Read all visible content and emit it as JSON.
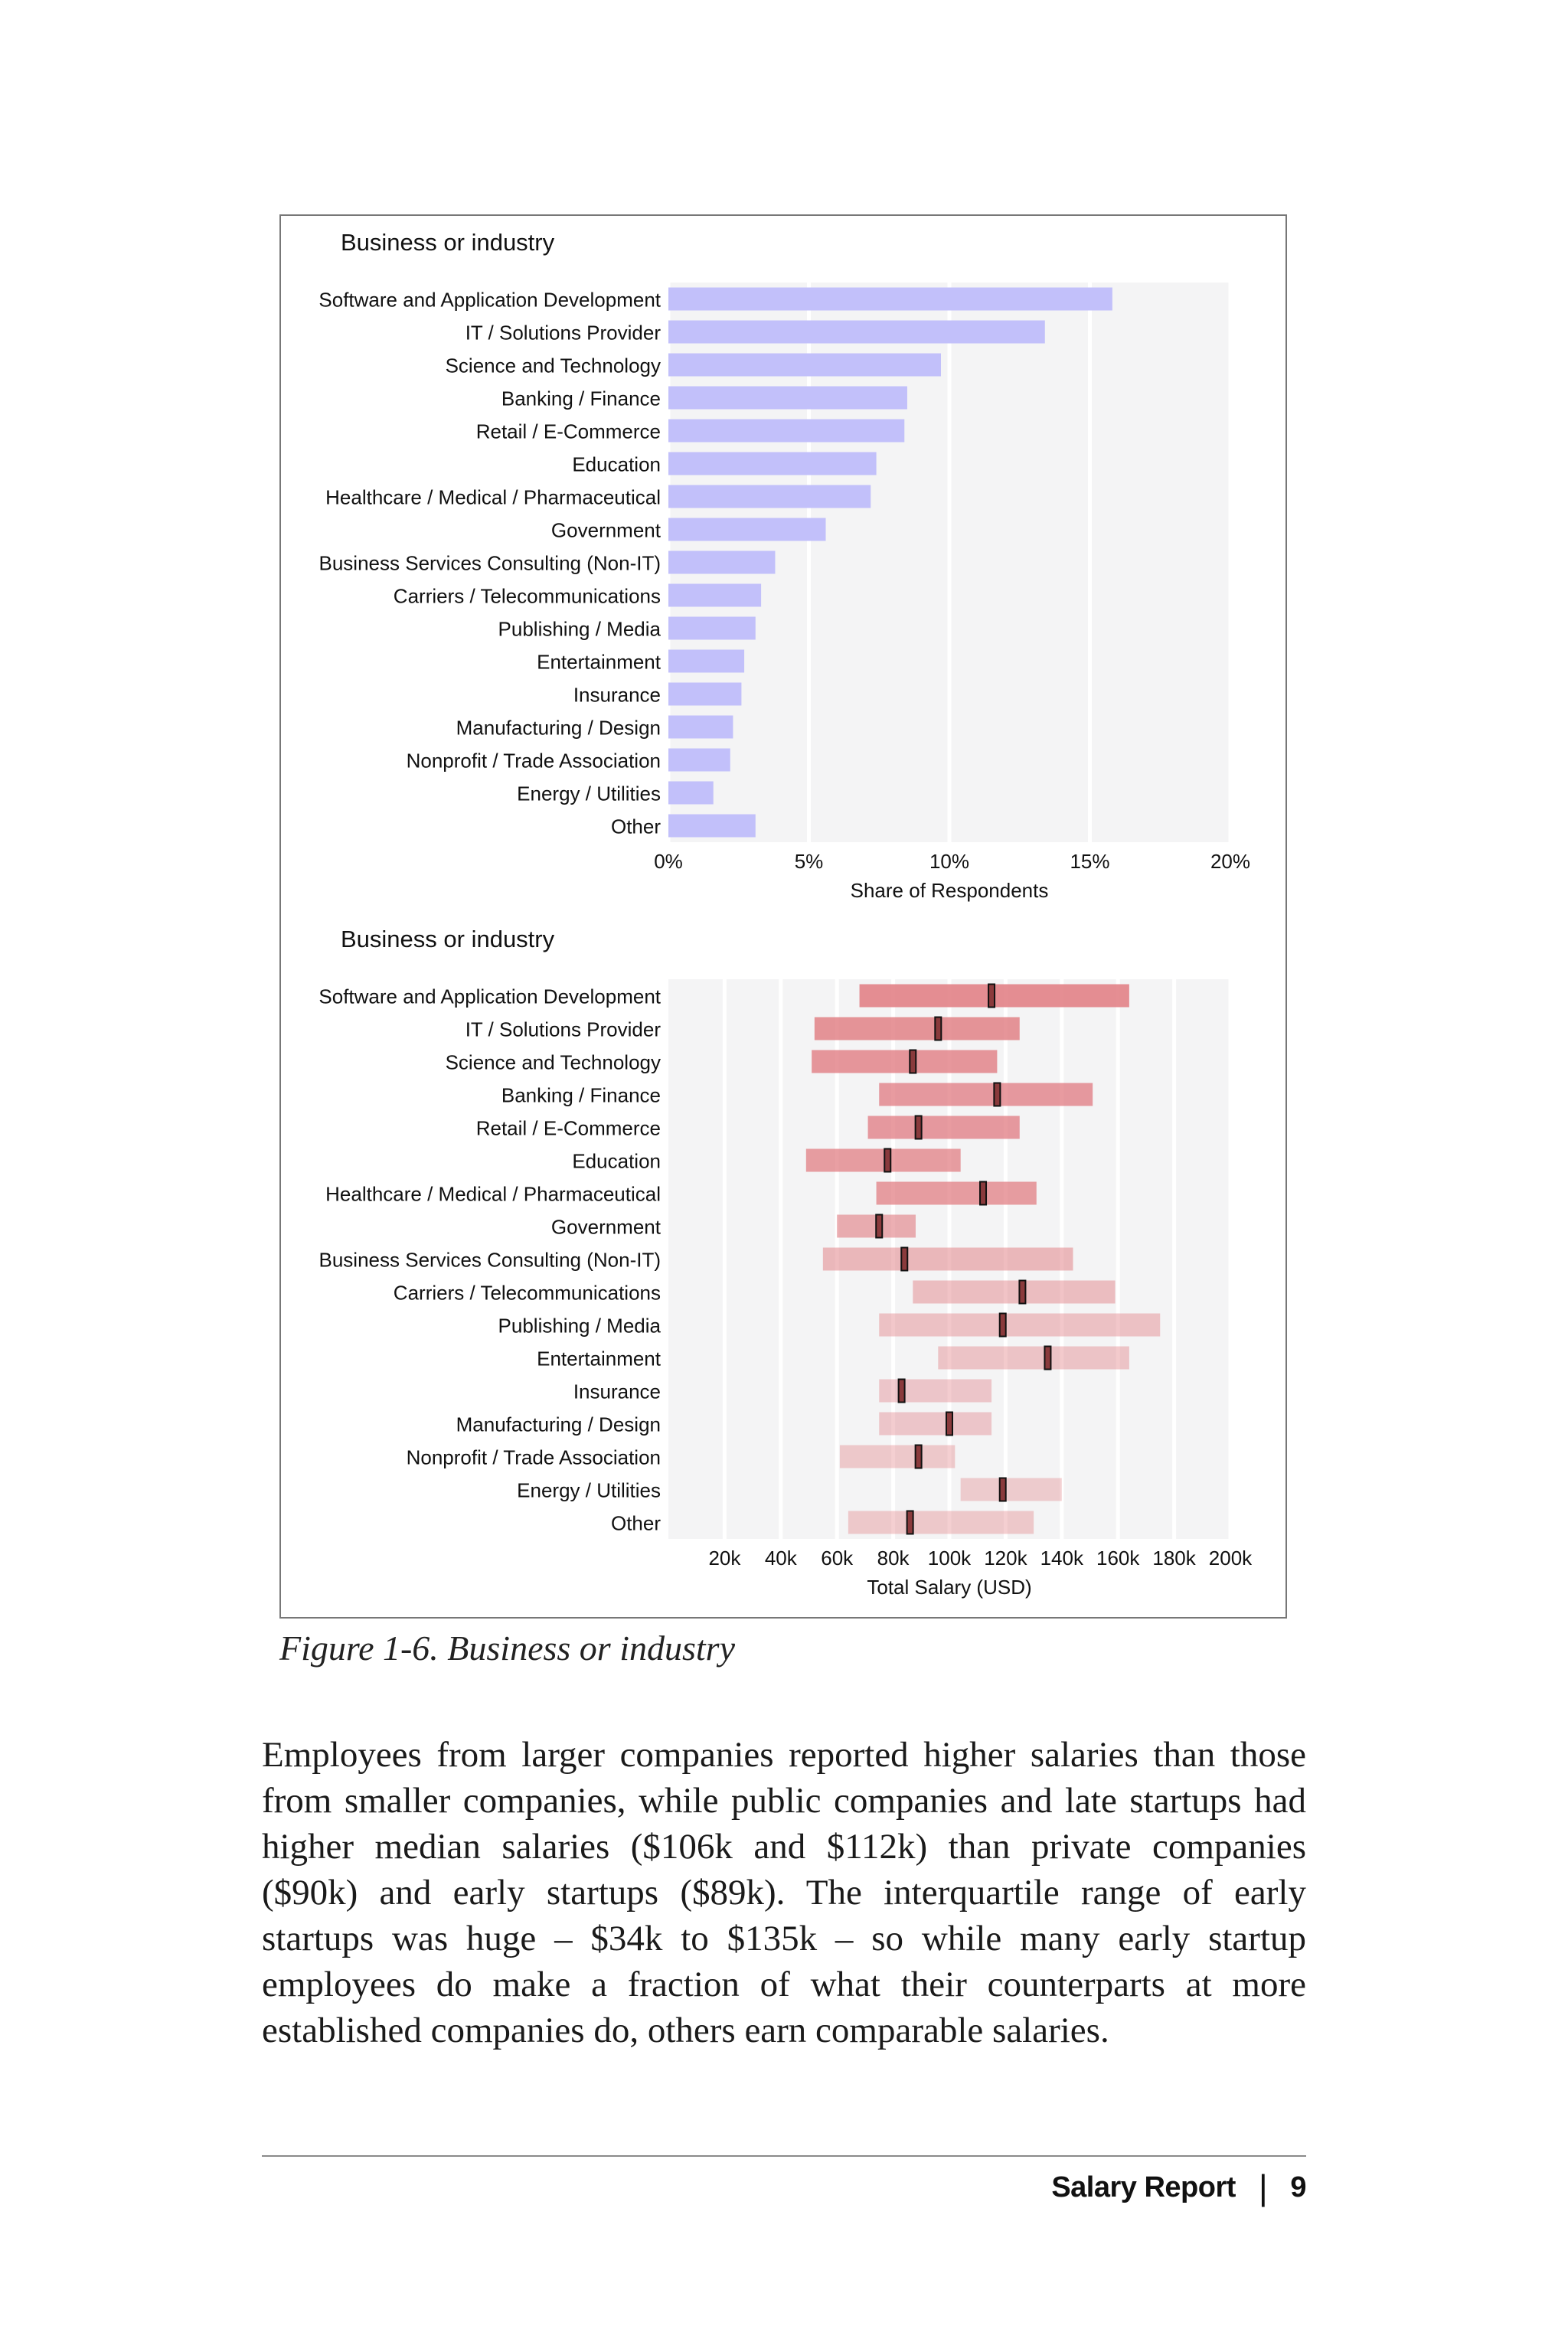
{
  "chart_data": [
    {
      "type": "bar",
      "title": "Business or industry",
      "xlabel": "Share of Respondents",
      "xlim": [
        0,
        20
      ],
      "x_ticks": [
        "0%",
        "5%",
        "10%",
        "15%",
        "20%"
      ],
      "categories": [
        "Software and Application Development",
        "IT / Solutions Provider",
        "Science and Technology",
        "Banking / Finance",
        "Retail / E-Commerce",
        "Education",
        "Healthcare / Medical / Pharmaceutical",
        "Government",
        "Business Services Consulting (Non-IT)",
        "Carriers / Telecommunications",
        "Publishing / Media",
        "Entertainment",
        "Insurance",
        "Manufacturing / Design",
        "Nonprofit / Trade Association",
        "Energy / Utilities",
        "Other"
      ],
      "values": [
        15.8,
        13.4,
        9.7,
        8.5,
        8.4,
        7.4,
        7.2,
        5.6,
        3.8,
        3.3,
        3.1,
        2.7,
        2.6,
        2.3,
        2.2,
        1.6,
        3.1
      ],
      "bar_color": "#c2c0fa"
    },
    {
      "type": "range",
      "title": "Business or industry",
      "xlabel": "Total Salary (USD)",
      "xlim": [
        0,
        200000
      ],
      "x_ticks": [
        "20k",
        "40k",
        "60k",
        "80k",
        "100k",
        "120k",
        "140k",
        "160k",
        "180k",
        "200k"
      ],
      "categories": [
        "Software and Application Development",
        "IT / Solutions Provider",
        "Science and Technology",
        "Banking / Finance",
        "Retail / E-Commerce",
        "Education",
        "Healthcare / Medical / Pharmaceutical",
        "Government",
        "Business Services Consulting (Non-IT)",
        "Carriers / Telecommunications",
        "Publishing / Media",
        "Entertainment",
        "Insurance",
        "Manufacturing / Design",
        "Nonprofit / Trade Association",
        "Energy / Utilities",
        "Other"
      ],
      "ranges": [
        {
          "low": 68000,
          "median": 115000,
          "high": 164000,
          "opacity": 0.85
        },
        {
          "low": 52000,
          "median": 96000,
          "high": 125000,
          "opacity": 0.8
        },
        {
          "low": 51000,
          "median": 87000,
          "high": 117000,
          "opacity": 0.78
        },
        {
          "low": 75000,
          "median": 117000,
          "high": 151000,
          "opacity": 0.75
        },
        {
          "low": 71000,
          "median": 89000,
          "high": 125000,
          "opacity": 0.75
        },
        {
          "low": 49000,
          "median": 78000,
          "high": 104000,
          "opacity": 0.72
        },
        {
          "low": 74000,
          "median": 112000,
          "high": 131000,
          "opacity": 0.72
        },
        {
          "low": 60000,
          "median": 75000,
          "high": 88000,
          "opacity": 0.6
        },
        {
          "low": 55000,
          "median": 84000,
          "high": 144000,
          "opacity": 0.5
        },
        {
          "low": 87000,
          "median": 126000,
          "high": 159000,
          "opacity": 0.45
        },
        {
          "low": 75000,
          "median": 119000,
          "high": 175000,
          "opacity": 0.42
        },
        {
          "low": 96000,
          "median": 135000,
          "high": 164000,
          "opacity": 0.4
        },
        {
          "low": 75000,
          "median": 83000,
          "high": 115000,
          "opacity": 0.38
        },
        {
          "low": 75000,
          "median": 100000,
          "high": 115000,
          "opacity": 0.38
        },
        {
          "low": 61000,
          "median": 89000,
          "high": 102000,
          "opacity": 0.36
        },
        {
          "low": 104000,
          "median": 119000,
          "high": 140000,
          "opacity": 0.34
        },
        {
          "low": 64000,
          "median": 86000,
          "high": 130000,
          "opacity": 0.36
        }
      ],
      "range_color": "#e07a80",
      "median_color": "#8a3a3c"
    }
  ],
  "caption": "Figure 1-6. Business or industry",
  "body": "Employees from larger companies reported higher salaries than those from smaller companies, while public companies and late startups had higher median salaries ($106k and $112k) than private companies ($90k) and early startups ($89k). The interquartile range of early startups was huge – $34k to $135k – so while many early startup employees do make a fraction of what their counterparts at more established companies do, others earn comparable salaries.",
  "footer": {
    "title": "Salary Report",
    "separator": "|",
    "page_number": "9"
  }
}
